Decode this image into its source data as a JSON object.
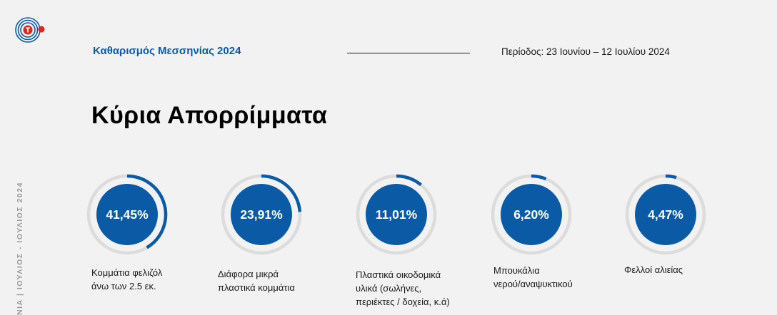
{
  "header": {
    "title": "Καθαρισμός Μεσσηνίας 2024",
    "period": "Περίοδος: 23 Ιουνίου – 12 Ιουλίου 2024"
  },
  "page_title": "Κύρια Απορρίμματα",
  "side_text": "ΝΙΑ | ΙΟΥΛΙΟΣ - ΙΟΥΛΙΟΣ 2024",
  "colors": {
    "brand_blue": "#0b5aa6",
    "logo_red": "#e0251b",
    "ring_track": "#dcdcdc",
    "background": "#f2f2f2"
  },
  "metrics": [
    {
      "value_label": "41,45%",
      "value": 41.45,
      "label": "Κομμάτια φελιζόλ\nάνω των 2.5 εκ."
    },
    {
      "value_label": "23,91%",
      "value": 23.91,
      "label": "Διάφορα μικρά\nπλαστικά κομμάτια"
    },
    {
      "value_label": "11,01%",
      "value": 11.01,
      "label": "Πλαστικά οικοδομικά\nυλικά (σωλήνες,\nπεριέκτες / δοχεία, κ.ά)"
    },
    {
      "value_label": "6,20%",
      "value": 6.2,
      "label": "Μπουκάλια\nνερού/αναψυκτικού"
    },
    {
      "value_label": "4,47%",
      "value": 4.47,
      "label": "Φελλοί αλιείας"
    }
  ]
}
